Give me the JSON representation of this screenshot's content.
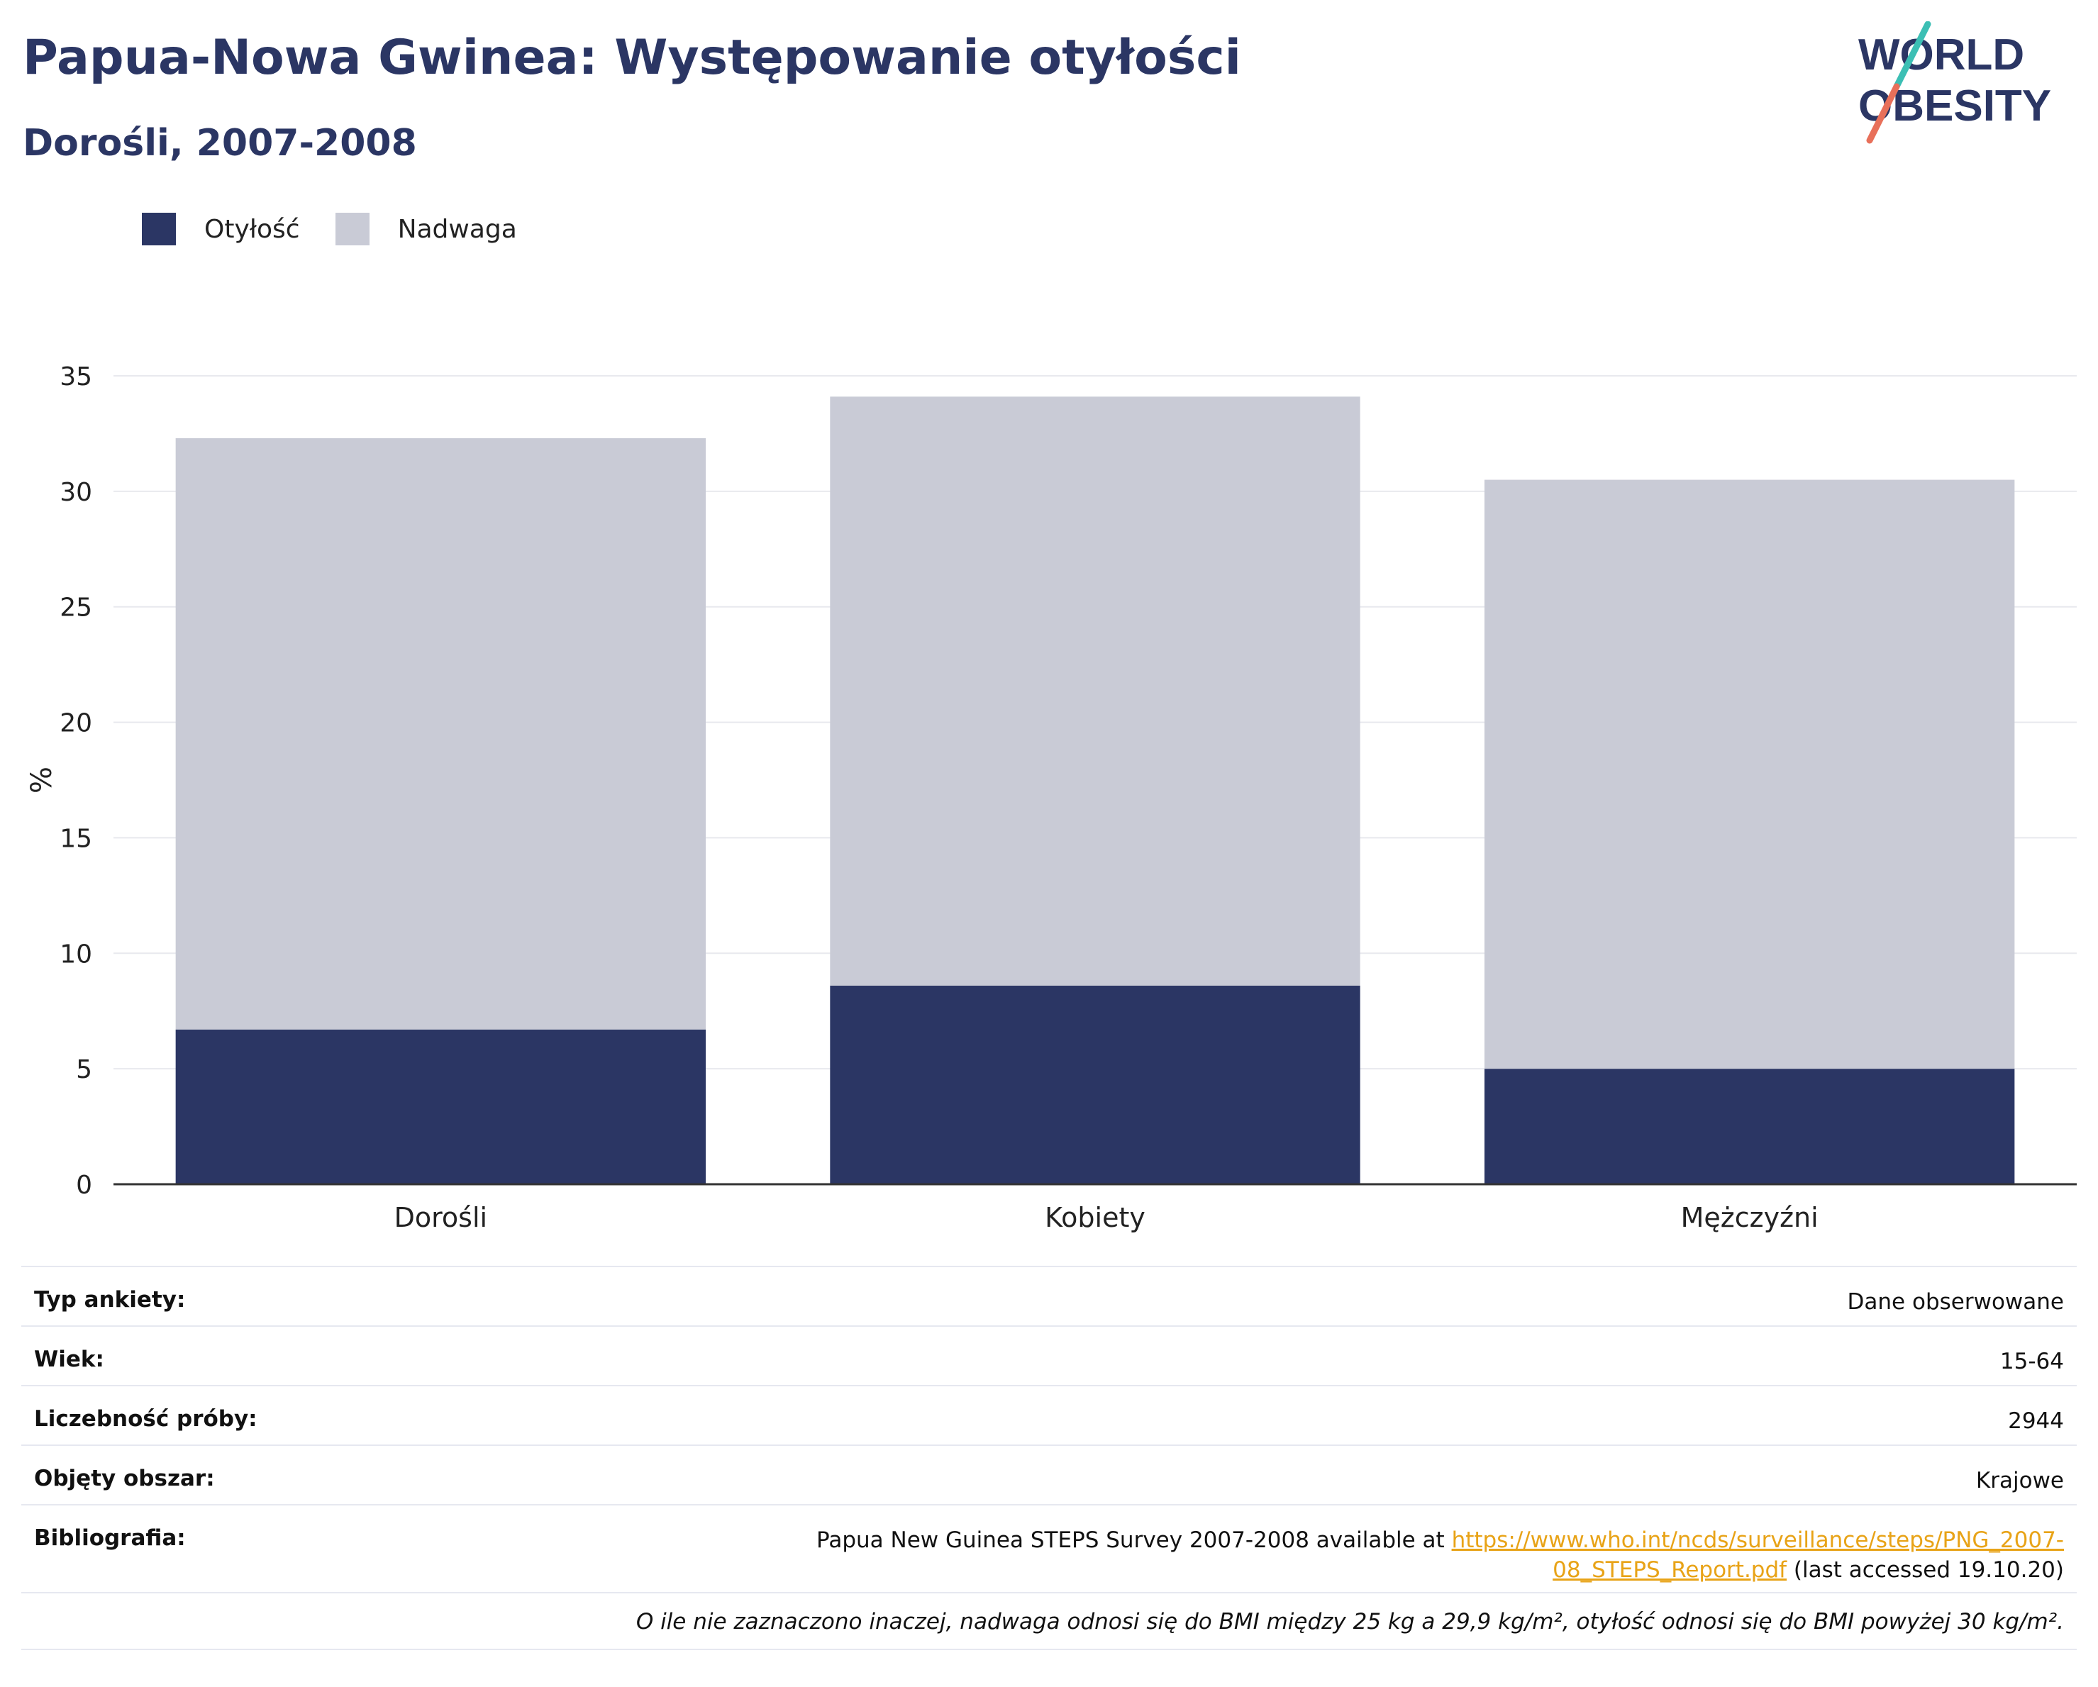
{
  "header": {
    "title": "Papua-Nowa Gwinea: Występowanie otyłości",
    "subtitle": "Dorośli, 2007-2008"
  },
  "logo": {
    "line1": "WORLD",
    "line2": "OBESITY",
    "slash_top_color": "#3cbfb4",
    "slash_bottom_color": "#e8705a"
  },
  "legend": [
    {
      "label": "Otyłość",
      "color": "#2b3664"
    },
    {
      "label": "Nadwaga",
      "color": "#c9cbd6"
    }
  ],
  "chart_data": {
    "type": "bar",
    "stacked": true,
    "categories": [
      "Dorośli",
      "Kobiety",
      "Mężczyźni"
    ],
    "series": [
      {
        "name": "Otyłość",
        "values": [
          6.7,
          8.6,
          5.0
        ],
        "color": "#2b3664"
      },
      {
        "name": "Nadwaga",
        "values": [
          25.6,
          25.5,
          25.5
        ],
        "color": "#c9cbd6"
      }
    ],
    "ylabel": "%",
    "ylim": [
      0,
      35
    ],
    "yticks": [
      0,
      5,
      10,
      15,
      20,
      25,
      30,
      35
    ],
    "grid": true,
    "legend_position": "top-left"
  },
  "meta": {
    "rows": [
      {
        "label": "Typ ankiety:",
        "value": "Dane obserwowane"
      },
      {
        "label": "Wiek:",
        "value": "15-64"
      },
      {
        "label": "Liczebność próby:",
        "value": "2944"
      },
      {
        "label": "Objęty obszar:",
        "value": "Krajowe"
      }
    ],
    "bibliography": {
      "label": "Bibliografia:",
      "prefix": "Papua New Guinea STEPS Survey 2007-2008 available at ",
      "link_line1": "https://www.who.int/ncds/surveillance/steps/PNG_2007-",
      "link_line2": "08_STEPS_Report.pdf",
      "suffix": " (last accessed 19.10.20)"
    },
    "note": "O ile nie zaznaczono inaczej, nadwaga odnosi się do BMI między 25 kg a 29,9 kg/m², otyłość odnosi się do BMI powyżej 30 kg/m²."
  }
}
